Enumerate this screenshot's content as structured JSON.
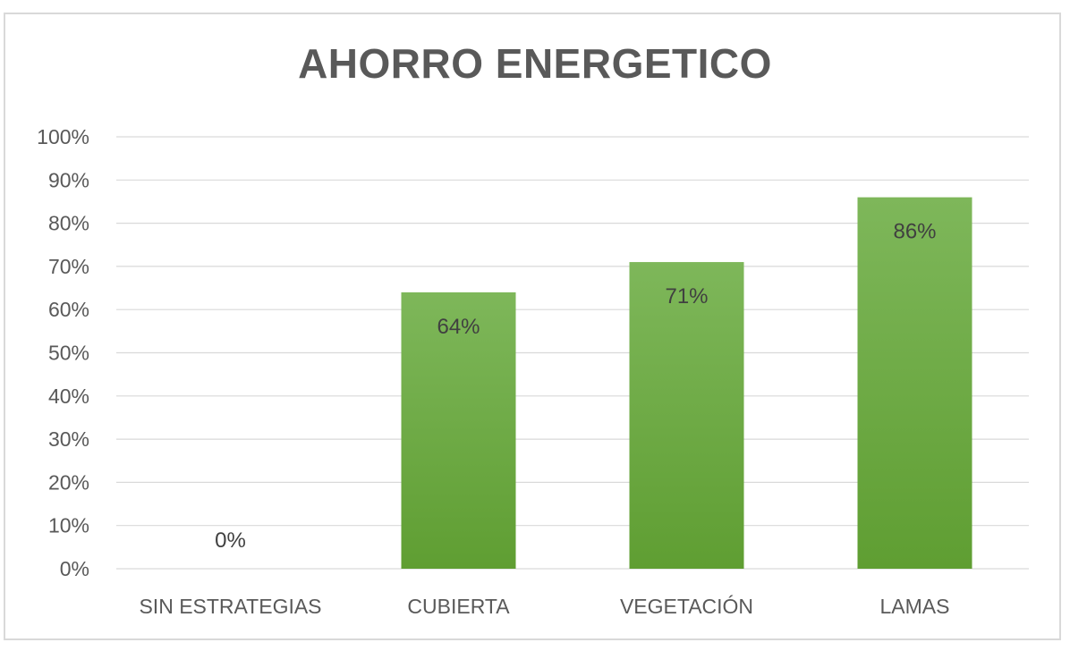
{
  "chart_data": {
    "type": "bar",
    "title": "AHORRO ENERGETICO",
    "xlabel": "",
    "ylabel": "",
    "categories": [
      "SIN ESTRATEGIAS",
      "CUBIERTA",
      "VEGETACIÓN",
      "LAMAS"
    ],
    "series": [
      {
        "values": [
          0,
          0.64,
          0.71,
          0.86
        ],
        "data_labels": [
          "0%",
          "64%",
          "71%",
          "86%"
        ]
      }
    ],
    "ylim": [
      0,
      1
    ],
    "y_ticks": [
      0,
      0.1,
      0.2,
      0.3,
      0.4,
      0.5,
      0.6,
      0.7,
      0.8,
      0.9,
      1.0
    ],
    "y_tick_labels": [
      "0%",
      "10%",
      "20%",
      "30%",
      "40%",
      "50%",
      "60%",
      "70%",
      "80%",
      "90%",
      "100%"
    ],
    "grid": true,
    "legend": "none",
    "colors": {
      "bar_top": "#7eb75a",
      "bar_bottom": "#5f9e32",
      "grid": "#d9d9d9",
      "text": "#595959"
    }
  }
}
